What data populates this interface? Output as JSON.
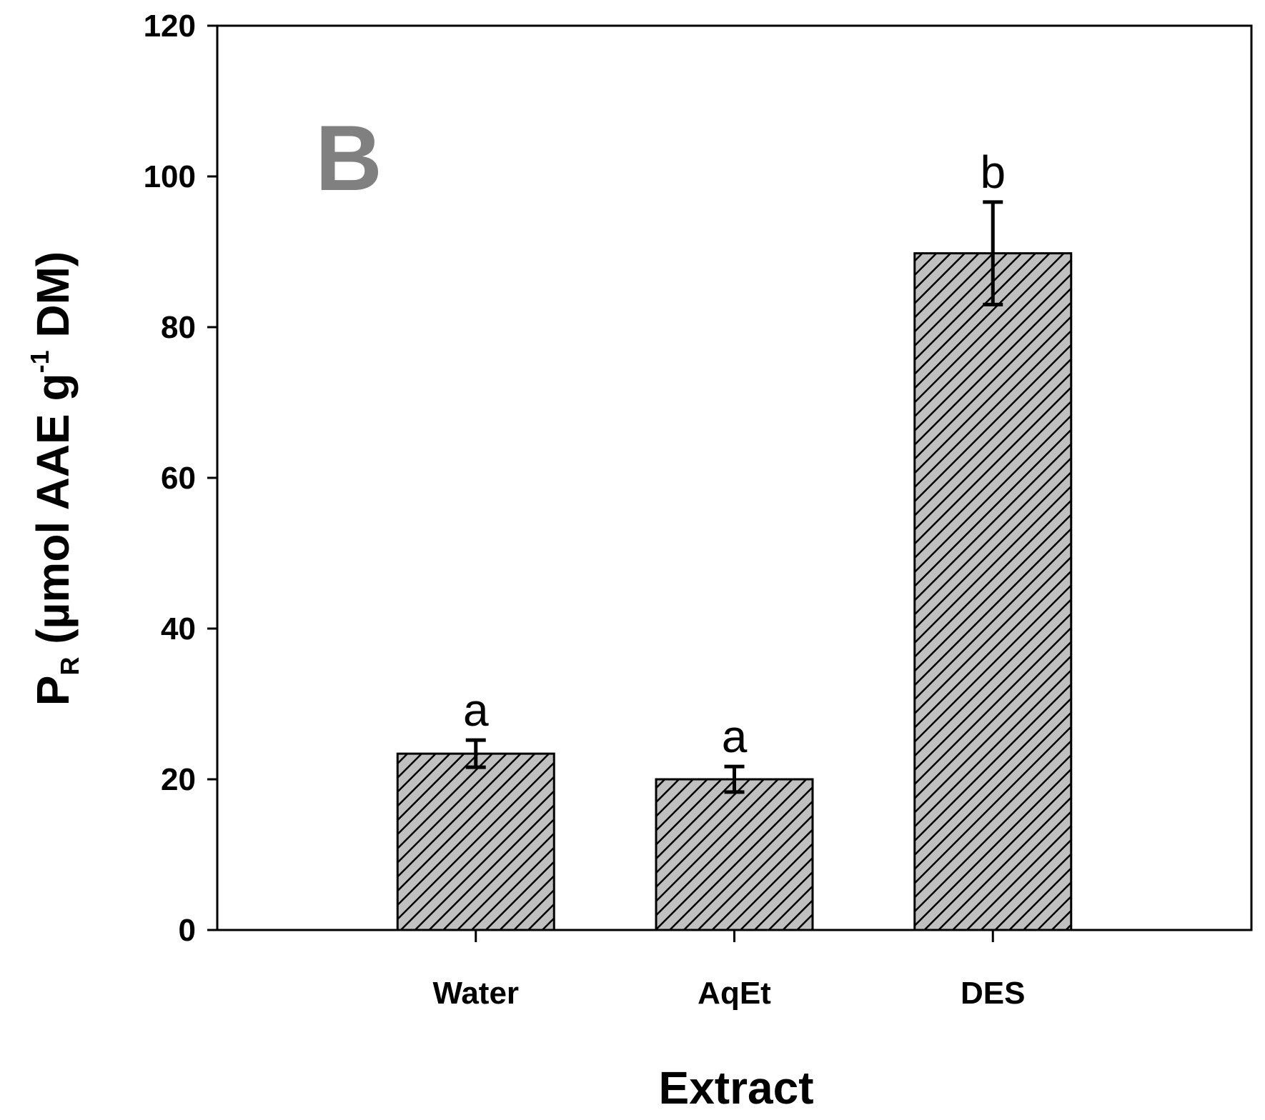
{
  "chart_data": {
    "type": "bar",
    "panel_label": "B",
    "categories": [
      "Water",
      "AqEt",
      "DES"
    ],
    "values": [
      23.4,
      20.0,
      89.8
    ],
    "errors": [
      1.8,
      1.7,
      6.8
    ],
    "significance_letters": [
      "a",
      "a",
      "b"
    ],
    "xlabel": "Extract",
    "ylabel": {
      "main": "P",
      "subscript": "R",
      "unit_pre": " (µmol AAE g",
      "superscript": "-1",
      "unit_post": " DM)"
    },
    "ylim": [
      0,
      120
    ],
    "yticks": [
      "0",
      "20",
      "40",
      "60",
      "80",
      "100",
      "120"
    ],
    "grid": false,
    "legend": "none",
    "colors": {
      "bar_fill": "#c0c0c0",
      "hatch": "#000000",
      "panel_label": "#808080"
    }
  }
}
